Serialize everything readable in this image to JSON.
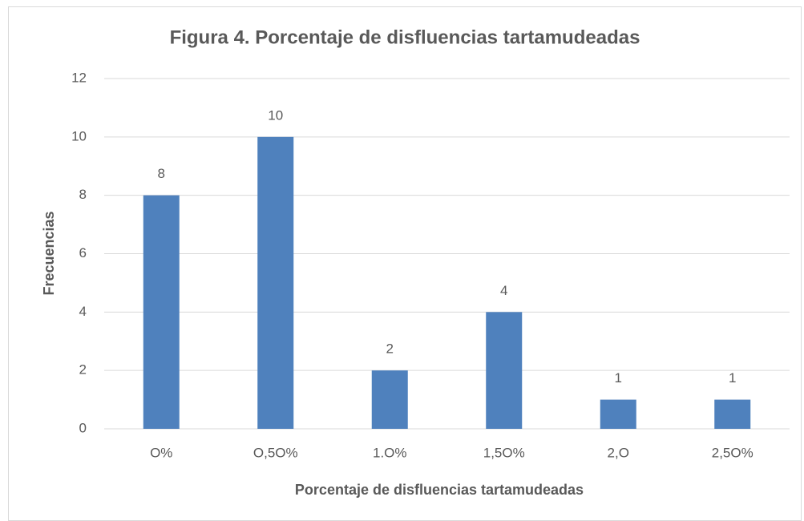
{
  "chart_data": {
    "type": "bar",
    "title": "Figura 4. Porcentaje de disfluencias tartamudeadas",
    "x_label": "Porcentaje de disfluencias tartamudeadas",
    "y_label": "Frecuencias",
    "categories": [
      "O%",
      "O,5O%",
      "1.O%",
      "1,5O%",
      "2,O",
      "2,5O%"
    ],
    "values": [
      8,
      10,
      2,
      4,
      1,
      1
    ],
    "color": "#4f81bd",
    "ylim": [
      0,
      12
    ],
    "yticks": [
      0,
      2,
      4,
      6,
      8,
      10,
      12
    ],
    "grid": true,
    "data_labels": true
  }
}
